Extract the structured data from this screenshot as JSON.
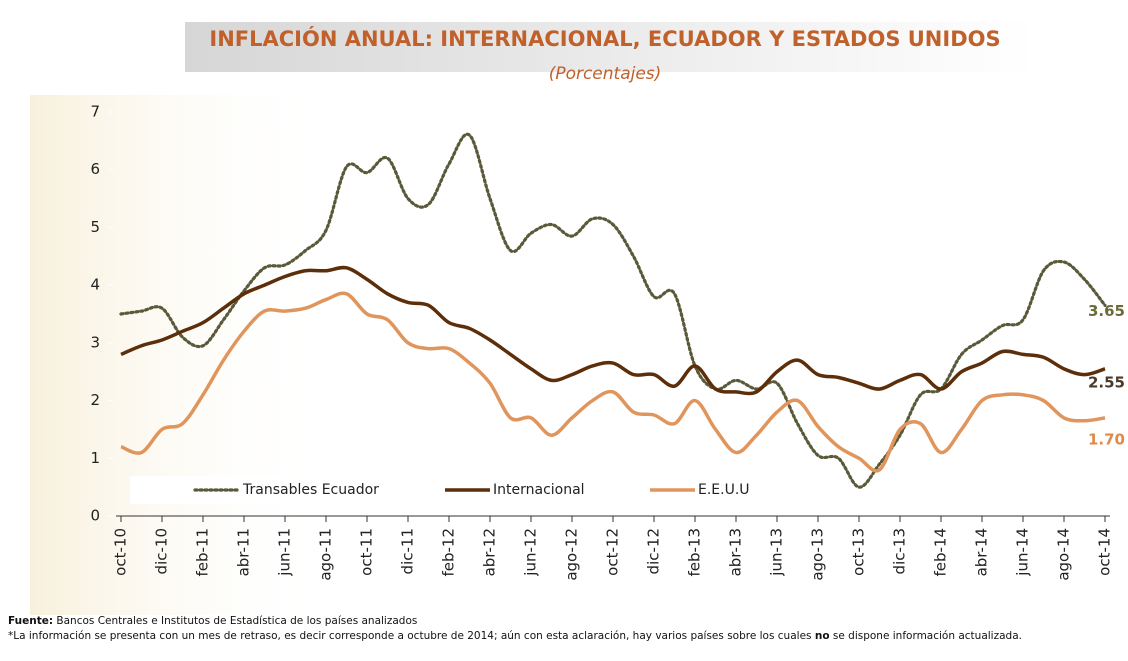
{
  "chart_data": {
    "type": "line",
    "title": "INFLACIÓN ANUAL: INTERNACIONAL, ECUADOR Y ESTADOS UNIDOS",
    "subtitle": "(Porcentajes)",
    "categories": [
      "oct-10",
      null,
      "dic-10",
      null,
      "feb-11",
      null,
      "abr-11",
      null,
      "jun-11",
      null,
      "ago-11",
      null,
      "oct-11",
      null,
      "dic-11",
      null,
      "feb-12",
      null,
      "abr-12",
      null,
      "jun-12",
      null,
      "ago-12",
      null,
      "oct-12",
      null,
      "dic-12",
      null,
      "feb-13",
      null,
      "abr-13",
      null,
      "jun-13",
      null,
      "ago-13",
      null,
      "oct-13",
      null,
      "dic-13",
      null,
      "feb-14",
      null,
      "abr-14",
      null,
      "jun-14",
      null,
      "ago-14",
      null,
      "oct-14"
    ],
    "series": [
      {
        "name": "Transables Ecuador",
        "color": "#5a5a3a",
        "dash": "dotted",
        "values": [
          3.5,
          3.55,
          3.6,
          3.1,
          2.95,
          3.4,
          3.9,
          4.3,
          4.35,
          4.6,
          4.95,
          6.05,
          5.95,
          6.2,
          5.5,
          5.4,
          6.1,
          6.6,
          5.5,
          4.6,
          4.9,
          5.05,
          4.85,
          5.15,
          5.05,
          4.5,
          3.8,
          3.85,
          2.6,
          2.2,
          2.35,
          2.2,
          2.3,
          1.6,
          1.05,
          1.0,
          0.5,
          0.9,
          1.4,
          2.1,
          2.2,
          2.8,
          3.05,
          3.3,
          3.4,
          4.25,
          4.4,
          4.1,
          3.65
        ],
        "value_labels": [
          null,
          null,
          null,
          null,
          null,
          null,
          null,
          null,
          null,
          null,
          null,
          null,
          null,
          null,
          null,
          null,
          null,
          null,
          null,
          null,
          null,
          null,
          null,
          null,
          null,
          null,
          null,
          null,
          null,
          null,
          null,
          null,
          null,
          null,
          null,
          null,
          null,
          null,
          null,
          null,
          null,
          null,
          null,
          null,
          null,
          null,
          null,
          null,
          "3.65"
        ],
        "label_color": "#6b6b3a"
      },
      {
        "name": "Internacional",
        "color": "#5c2e0a",
        "dash": "solid",
        "values": [
          2.8,
          2.95,
          3.05,
          3.2,
          3.35,
          3.6,
          3.85,
          4.0,
          4.15,
          4.25,
          4.25,
          4.3,
          4.1,
          3.85,
          3.7,
          3.65,
          3.35,
          3.25,
          3.05,
          2.8,
          2.55,
          2.35,
          2.45,
          2.6,
          2.65,
          2.45,
          2.45,
          2.25,
          2.6,
          2.2,
          2.15,
          2.15,
          2.5,
          2.7,
          2.45,
          2.4,
          2.3,
          2.2,
          2.35,
          2.45,
          2.2,
          2.5,
          2.65,
          2.85,
          2.8,
          2.75,
          2.55,
          2.45,
          2.55
        ],
        "value_labels": [
          null,
          null,
          null,
          null,
          null,
          null,
          null,
          null,
          null,
          null,
          null,
          null,
          null,
          null,
          null,
          null,
          null,
          null,
          null,
          null,
          null,
          null,
          null,
          null,
          null,
          null,
          null,
          null,
          null,
          null,
          null,
          null,
          null,
          null,
          null,
          null,
          null,
          null,
          null,
          null,
          null,
          null,
          null,
          null,
          null,
          null,
          null,
          null,
          "2.55"
        ],
        "label_color": "#4a3a2a"
      },
      {
        "name": "E.E.U.U",
        "color": "#e0955c",
        "dash": "solid",
        "values": [
          1.2,
          1.1,
          1.5,
          1.6,
          2.1,
          2.7,
          3.2,
          3.55,
          3.55,
          3.6,
          3.75,
          3.85,
          3.5,
          3.4,
          3.0,
          2.9,
          2.9,
          2.65,
          2.3,
          1.7,
          1.7,
          1.4,
          1.7,
          2.0,
          2.15,
          1.8,
          1.75,
          1.6,
          2.0,
          1.5,
          1.1,
          1.4,
          1.8,
          2.0,
          1.55,
          1.2,
          1.0,
          0.8,
          1.5,
          1.6,
          1.1,
          1.5,
          2.0,
          2.1,
          2.1,
          2.0,
          1.7,
          1.65,
          1.7
        ],
        "value_labels": [
          null,
          null,
          null,
          null,
          null,
          null,
          null,
          null,
          null,
          null,
          null,
          null,
          null,
          null,
          null,
          null,
          null,
          null,
          null,
          null,
          null,
          null,
          null,
          null,
          null,
          null,
          null,
          null,
          null,
          null,
          null,
          null,
          null,
          null,
          null,
          null,
          null,
          null,
          null,
          null,
          null,
          null,
          null,
          null,
          null,
          null,
          null,
          null,
          "1.70"
        ],
        "label_color": "#e08a4a"
      }
    ],
    "ylim": [
      0,
      7
    ],
    "yticks": [
      0,
      1,
      2,
      3,
      4,
      5,
      6,
      7
    ],
    "grid": false,
    "source_label": "Fuente:",
    "source": "Bancos Centrales e Institutos de Estadística de los países analizados",
    "note_before": "*La información se presenta con un mes de retraso, es decir corresponde a octubre de 2014; aún con esta aclaración, hay varios países  sobre los cuales",
    "note_bold": "no",
    "note_after": "se dispone información actualizada."
  }
}
